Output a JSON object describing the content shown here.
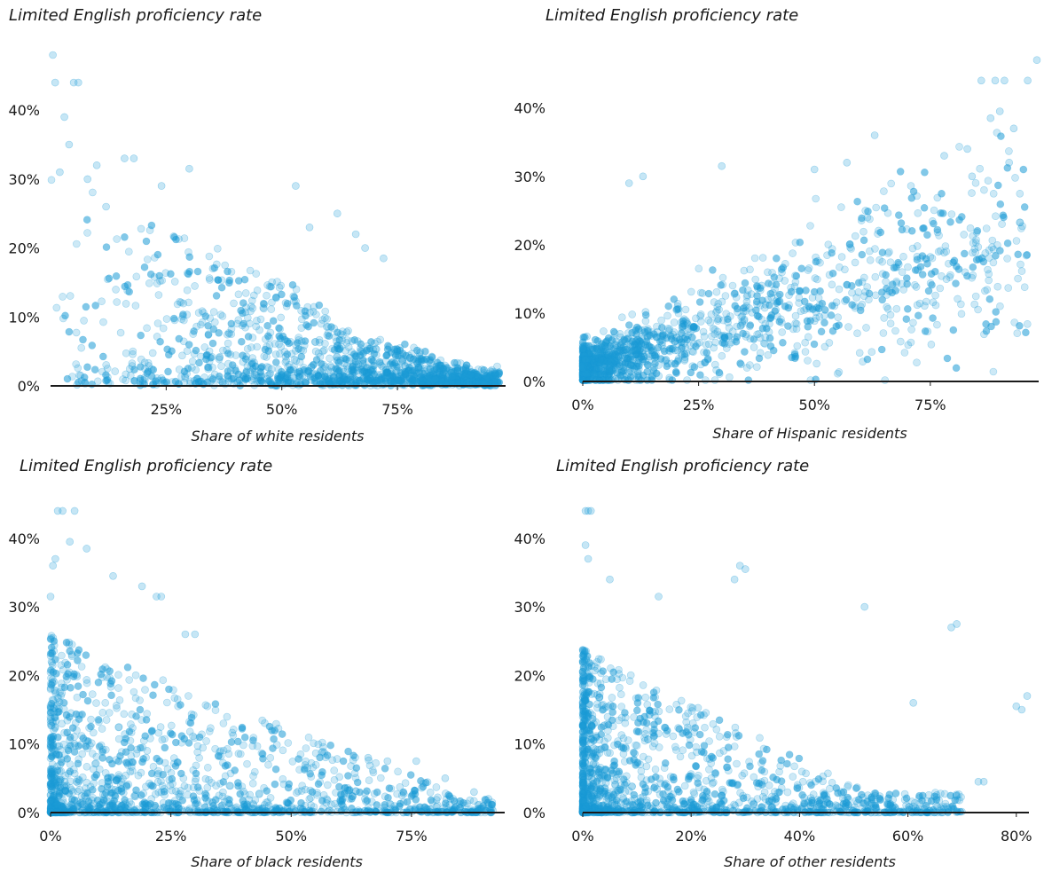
{
  "chart_data": [
    {
      "type": "scatter",
      "title": "Limited English proficiency rate",
      "xlabel": "Share of white residents",
      "ylabel": "Limited English proficiency rate",
      "xlim": [
        0,
        98
      ],
      "ylim": [
        0,
        48
      ],
      "x_ticks": [
        25,
        50,
        75
      ],
      "x_tick_labels": [
        "25%",
        "50%",
        "75%"
      ],
      "y_ticks": [
        0,
        10,
        20,
        30,
        40
      ],
      "y_tick_labels": [
        "0%",
        "10%",
        "20%",
        "30%",
        "40%"
      ],
      "color": "#1b9ad6",
      "grid": false,
      "trend": "negative",
      "density_fn": "white",
      "outliers": [
        [
          0.5,
          48
        ],
        [
          1,
          44
        ],
        [
          5,
          44
        ],
        [
          6,
          44
        ],
        [
          3,
          39
        ],
        [
          10,
          32
        ],
        [
          16,
          33
        ],
        [
          18,
          33
        ],
        [
          24,
          29
        ],
        [
          30,
          31.5
        ],
        [
          53,
          29
        ],
        [
          62,
          25
        ],
        [
          66,
          22
        ],
        [
          68,
          20
        ],
        [
          72,
          18.5
        ],
        [
          56,
          23
        ],
        [
          4,
          35
        ],
        [
          2,
          31
        ],
        [
          12,
          26
        ],
        [
          8,
          30
        ]
      ]
    },
    {
      "type": "scatter",
      "title": "Limited English proficiency rate",
      "xlabel": "Share of Hispanic residents",
      "ylabel": "Limited English proficiency rate",
      "xlim": [
        0,
        98
      ],
      "ylim": [
        0,
        48
      ],
      "x_ticks": [
        0,
        25,
        50,
        75
      ],
      "x_tick_labels": [
        "0%",
        "25%",
        "50%",
        "75%"
      ],
      "y_ticks": [
        0,
        10,
        20,
        30,
        40
      ],
      "y_tick_labels": [
        "0%",
        "10%",
        "20%",
        "30%",
        "40%"
      ],
      "color": "#1b9ad6",
      "grid": false,
      "trend": "positive",
      "density_fn": "hispanic",
      "outliers": [
        [
          86,
          44
        ],
        [
          89,
          44
        ],
        [
          91,
          44
        ],
        [
          96,
          44
        ],
        [
          98,
          47
        ],
        [
          90,
          39.5
        ],
        [
          93,
          37
        ],
        [
          88,
          38.5
        ],
        [
          13,
          30
        ],
        [
          10,
          29
        ],
        [
          30,
          31.5
        ],
        [
          50,
          31
        ],
        [
          57,
          32
        ],
        [
          63,
          36
        ],
        [
          78,
          33
        ],
        [
          83,
          34
        ],
        [
          84,
          30
        ],
        [
          92,
          32
        ]
      ]
    },
    {
      "type": "scatter",
      "title": "Limited English proficiency rate",
      "xlabel": "Share of black residents",
      "ylabel": "Limited English proficiency rate",
      "xlim": [
        0,
        94
      ],
      "ylim": [
        0,
        44.5
      ],
      "x_ticks": [
        0,
        25,
        50,
        75
      ],
      "x_tick_labels": [
        "0%",
        "25%",
        "50%",
        "75%"
      ],
      "y_ticks": [
        0,
        10,
        20,
        30,
        40
      ],
      "y_tick_labels": [
        "0%",
        "10%",
        "20%",
        "30%",
        "40%"
      ],
      "color": "#1b9ad6",
      "grid": false,
      "trend": "negative",
      "density_fn": "black",
      "outliers": [
        [
          1.5,
          44
        ],
        [
          2.5,
          44
        ],
        [
          5,
          44
        ],
        [
          4,
          39.5
        ],
        [
          7.5,
          38.5
        ],
        [
          0.5,
          36
        ],
        [
          1,
          37
        ],
        [
          13,
          34.5
        ],
        [
          19,
          33
        ],
        [
          22,
          31.5
        ],
        [
          23,
          31.5
        ],
        [
          28,
          26
        ],
        [
          30,
          26
        ],
        [
          0,
          31.5
        ],
        [
          66,
          8
        ],
        [
          70,
          7.5
        ],
        [
          76,
          7.5
        ],
        [
          82,
          5
        ],
        [
          88,
          3
        ],
        [
          91,
          2
        ]
      ]
    },
    {
      "type": "scatter",
      "title": "Limited English proficiency rate",
      "xlabel": "Share of other residents",
      "ylabel": "Limited English proficiency rate",
      "xlim": [
        0,
        82
      ],
      "ylim": [
        0,
        44.5
      ],
      "x_ticks": [
        0,
        20,
        40,
        60,
        80
      ],
      "x_tick_labels": [
        "0%",
        "20%",
        "40%",
        "60%",
        "80%"
      ],
      "y_ticks": [
        0,
        10,
        20,
        30,
        40
      ],
      "y_tick_labels": [
        "0%",
        "10%",
        "20%",
        "30%",
        "40%"
      ],
      "color": "#1b9ad6",
      "grid": false,
      "trend": "negative",
      "density_fn": "other",
      "outliers": [
        [
          0.5,
          44
        ],
        [
          1,
          44
        ],
        [
          1.5,
          44
        ],
        [
          0.5,
          39
        ],
        [
          1,
          37
        ],
        [
          5,
          34
        ],
        [
          14,
          31.5
        ],
        [
          29,
          36
        ],
        [
          30,
          35.5
        ],
        [
          28,
          34
        ],
        [
          52,
          30
        ],
        [
          68,
          27
        ],
        [
          69,
          27.5
        ],
        [
          80,
          15.5
        ],
        [
          81,
          15
        ],
        [
          82,
          17
        ],
        [
          73,
          4.5
        ],
        [
          74,
          4.5
        ],
        [
          69,
          2.5
        ],
        [
          61,
          16
        ]
      ]
    }
  ]
}
